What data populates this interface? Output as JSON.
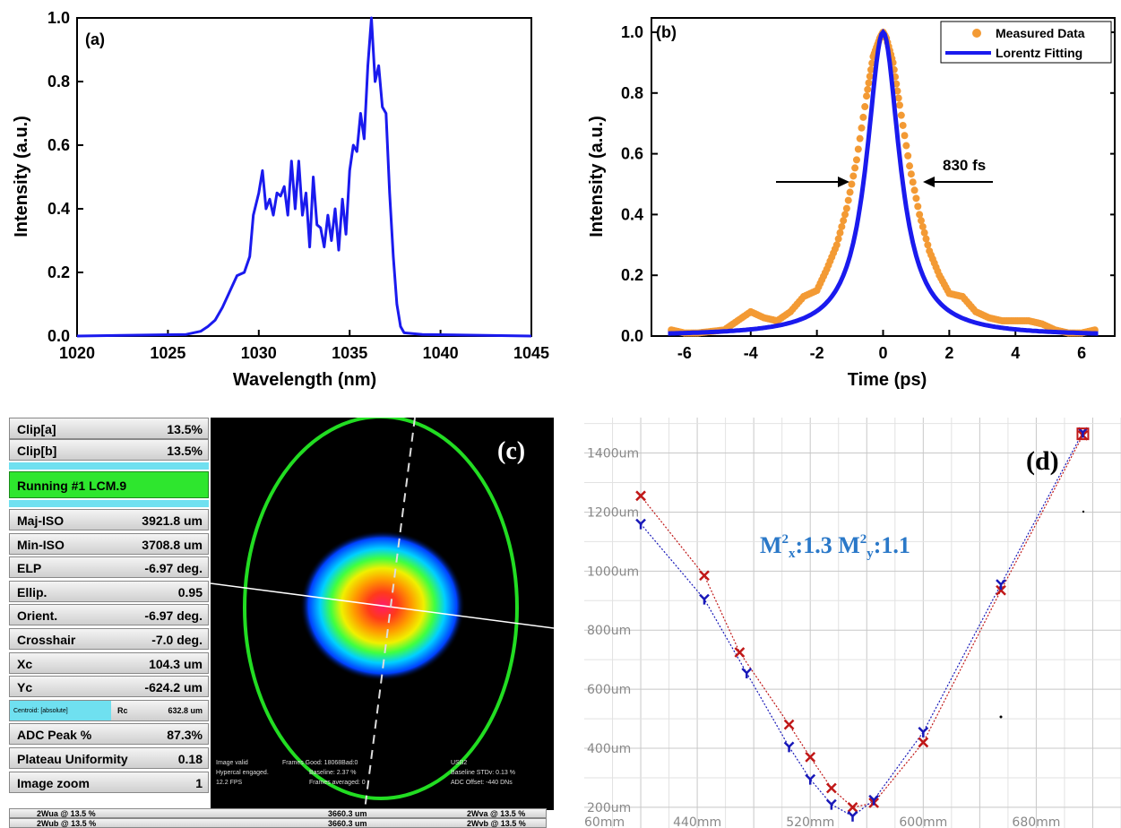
{
  "chart_data": [
    {
      "panel": "(a)",
      "type": "line",
      "xlabel": "Wavelength (nm)",
      "ylabel": "Intensity (a.u.)",
      "xlim": [
        1020,
        1045
      ],
      "ylim": [
        0,
        1.0
      ],
      "xticks": [
        "1020",
        "1025",
        "1030",
        "1035",
        "1040",
        "1045"
      ],
      "yticks": [
        "0.0",
        "0.2",
        "0.4",
        "0.6",
        "0.8",
        "1.0"
      ],
      "series": [
        {
          "color": "#1a1aee",
          "x": [
            1020,
            1026.0,
            1026.8,
            1027.2,
            1027.6,
            1028.0,
            1028.4,
            1028.8,
            1029.2,
            1029.5,
            1029.7,
            1030.0,
            1030.2,
            1030.4,
            1030.6,
            1030.8,
            1031.0,
            1031.2,
            1031.4,
            1031.6,
            1031.8,
            1032.0,
            1032.2,
            1032.4,
            1032.6,
            1032.8,
            1033.0,
            1033.2,
            1033.4,
            1033.6,
            1033.8,
            1034.0,
            1034.2,
            1034.4,
            1034.6,
            1034.8,
            1035.0,
            1035.2,
            1035.4,
            1035.6,
            1035.8,
            1036.0,
            1036.2,
            1036.4,
            1036.6,
            1036.8,
            1037.0,
            1037.2,
            1037.4,
            1037.6,
            1037.8,
            1038.0,
            1039.0,
            1045
          ],
          "y": [
            0.0,
            0.005,
            0.015,
            0.03,
            0.05,
            0.09,
            0.14,
            0.19,
            0.2,
            0.25,
            0.38,
            0.45,
            0.52,
            0.4,
            0.43,
            0.38,
            0.45,
            0.44,
            0.47,
            0.38,
            0.55,
            0.4,
            0.55,
            0.38,
            0.45,
            0.28,
            0.5,
            0.35,
            0.34,
            0.28,
            0.38,
            0.3,
            0.4,
            0.27,
            0.43,
            0.32,
            0.52,
            0.6,
            0.58,
            0.7,
            0.62,
            0.85,
            1.0,
            0.8,
            0.85,
            0.72,
            0.7,
            0.45,
            0.25,
            0.1,
            0.03,
            0.01,
            0.005,
            0.0
          ]
        }
      ]
    },
    {
      "panel": "(b)",
      "type": "scatter",
      "xlabel": "Time (ps)",
      "ylabel": "Intensity (a.u.)",
      "xlim": [
        -7,
        7
      ],
      "ylim": [
        0,
        1.0
      ],
      "xticks": [
        "-6",
        "-4",
        "-2",
        "0",
        "2",
        "4",
        "6"
      ],
      "yticks": [
        "0.0",
        "0.2",
        "0.4",
        "0.6",
        "0.8",
        "1.0"
      ],
      "annotation": "830 fs",
      "legend": {
        "position": "top-right"
      },
      "series": [
        {
          "name": "Measured Data",
          "color": "#f39a34",
          "fwhm_ps": 0.83,
          "points_x": [
            -6.4,
            -6.0,
            -5.6,
            -5.2,
            -4.8,
            -4.4,
            -4.0,
            -3.6,
            -3.2,
            -2.8,
            -2.4,
            -2.0,
            -1.7,
            -1.4,
            -1.1,
            -0.8,
            -0.5,
            -0.3,
            -0.1,
            0.0,
            0.1,
            0.3,
            0.5,
            0.8,
            1.1,
            1.4,
            1.7,
            2.0,
            2.4,
            2.8,
            3.2,
            3.6,
            4.0,
            4.4,
            4.8,
            5.2,
            5.6,
            6.0,
            6.4
          ],
          "points_y": [
            0.02,
            0.01,
            0.01,
            0.015,
            0.02,
            0.05,
            0.08,
            0.06,
            0.05,
            0.08,
            0.13,
            0.15,
            0.22,
            0.3,
            0.42,
            0.58,
            0.79,
            0.92,
            0.98,
            1.0,
            0.98,
            0.9,
            0.76,
            0.56,
            0.4,
            0.28,
            0.2,
            0.14,
            0.13,
            0.08,
            0.06,
            0.05,
            0.05,
            0.05,
            0.04,
            0.02,
            0.01,
            0.01,
            0.02
          ]
        },
        {
          "name": "Lorentz Fitting",
          "color": "#1a1aee",
          "fwhm_ps": 1.2
        }
      ]
    },
    {
      "panel": "(d)",
      "type": "line",
      "annotation": "M²x:1.3  M²y:1.1",
      "xticks": [
        "60mm",
        "440mm",
        "520mm",
        "600mm",
        "680mm"
      ],
      "yticks": [
        "200um",
        "400um",
        "600um",
        "800um",
        "1000um",
        "1200um",
        "1400um"
      ],
      "xlim": [
        360,
        740
      ],
      "ylim": [
        130,
        1520
      ],
      "series": [
        {
          "marker": "x",
          "color": "#c01818",
          "x": [
            400,
            445,
            470,
            505,
            520,
            535,
            550,
            565,
            600,
            655,
            713
          ],
          "y": [
            1255,
            985,
            725,
            480,
            370,
            265,
            200,
            215,
            420,
            935,
            1460
          ]
        },
        {
          "marker": "y",
          "color": "#1818b8",
          "x": [
            400,
            445,
            475,
            505,
            520,
            535,
            550,
            565,
            600,
            655,
            713
          ],
          "y": [
            1160,
            905,
            655,
            405,
            295,
            210,
            170,
            225,
            455,
            955,
            1470
          ]
        }
      ]
    }
  ],
  "panel_c": {
    "label": "(c)",
    "rows": [
      {
        "label": "Clip[a]",
        "value": "13.5%"
      },
      {
        "label": "Clip[b]",
        "value": "13.5%"
      }
    ],
    "running": "Running #1 LCM.9",
    "metrics": [
      {
        "label": "Maj-ISO",
        "value": "3921.8 um"
      },
      {
        "label": "Min-ISO",
        "value": "3708.8 um"
      },
      {
        "label": "ELP",
        "value": "-6.97 deg."
      },
      {
        "label": "Ellip.",
        "value": "0.95"
      },
      {
        "label": "Orient.",
        "value": "-6.97 deg."
      },
      {
        "label": "Crosshair",
        "value": "-7.0 deg."
      },
      {
        "label": "Xc",
        "value": "104.3 um"
      },
      {
        "label": "Yc",
        "value": "-624.2 um"
      }
    ],
    "centroid": {
      "label": "Centroid: [absolute]",
      "rc_label": "Rc",
      "rc_value": "632.8 um"
    },
    "metrics2": [
      {
        "label": "ADC Peak %",
        "value": "87.3%"
      },
      {
        "label": "Plateau Uniformity",
        "value": "0.18"
      },
      {
        "label": "Image zoom",
        "value": "1"
      }
    ],
    "status_lines": [
      "Image valid",
      "Hypercal engaged.",
      "12.2 FPS",
      "Frames Good: 18068Bad:0",
      "Baseline: 2.37 %",
      "Frames averaged: 0",
      "USB2",
      "Baseline STDv: 0.13 %",
      "ADC Offset: -440 DNs"
    ],
    "bottom_rows": [
      {
        "left": "2Wua @ 13.5 %",
        "mid": "3660.3 um",
        "right": "2Wva @ 13.5 %"
      },
      {
        "left": "2Wub @ 13.5 %",
        "mid": "3660.3 um",
        "right": "2Wvb @ 13.5 %"
      }
    ]
  }
}
